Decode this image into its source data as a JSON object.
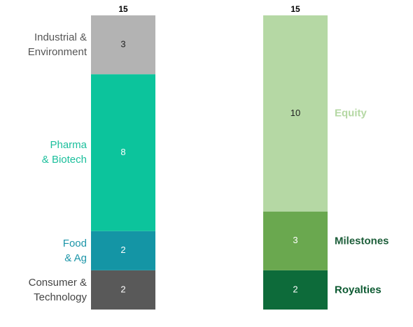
{
  "chart_data": [
    {
      "type": "stacked_bar",
      "total": 15,
      "ylim": [
        0,
        15
      ],
      "series": [
        {
          "name": "Consumer &\nTechnology",
          "color": "#595959",
          "label_color": "#444444",
          "values": [
            2
          ]
        },
        {
          "name": "Food\n& Ag",
          "color": "#1495a5",
          "label_color": "#1c95a8",
          "values": [
            2
          ]
        },
        {
          "name": "Pharma\n& Biotech",
          "color": "#0cc49c",
          "label_color": "#1bbf9c",
          "values": [
            8
          ]
        },
        {
          "name": "Industrial &\nEnvironment",
          "color": "#b3b3b3",
          "label_color": "#555555",
          "values": [
            3
          ]
        }
      ]
    },
    {
      "type": "stacked_bar",
      "total": 15,
      "ylim": [
        0,
        15
      ],
      "series": [
        {
          "name": "Royalties",
          "color": "#0d6b3a",
          "label_color": "#0d5a32",
          "values": [
            2
          ]
        },
        {
          "name": "Milestones",
          "color": "#6aa84f",
          "label_color": "#1d5e3a",
          "values": [
            3
          ]
        },
        {
          "name": "Equity",
          "color": "#b5d8a4",
          "label_color": "#b5d8a4",
          "values": [
            10
          ]
        }
      ]
    }
  ]
}
